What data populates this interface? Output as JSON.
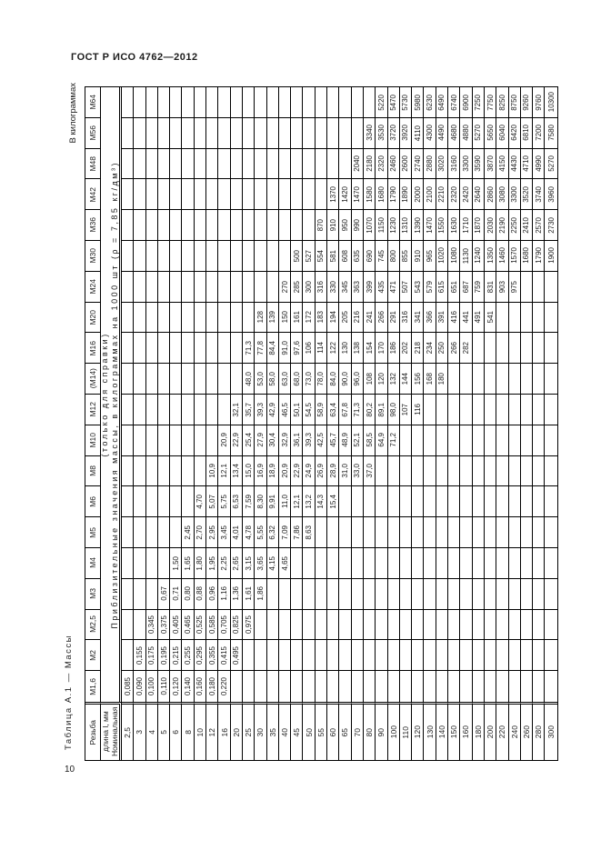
{
  "page": {
    "doc_header": "ГОСТ Р ИСО 4762—2012",
    "units_note": "В килограммах",
    "table_caption": "Таблица А.1 — Массы",
    "page_number": "10"
  },
  "table": {
    "corner_header": "Резьба",
    "length_column_header": "Номинальная длина l, мм",
    "span_header_line1": "Приблизительные значения массы, в килограммах на 1000 шт (ρ = 7,85 кг/дм³)",
    "span_header_line2": "(только для справки)",
    "lengths": [
      "2,5",
      "3",
      "4",
      "5",
      "6",
      "8",
      "10",
      "12",
      "16",
      "20",
      "25",
      "30",
      "35",
      "40",
      "45",
      "50",
      "55",
      "60",
      "65",
      "70",
      "80",
      "90",
      "100",
      "110",
      "120",
      "130",
      "140",
      "150",
      "160",
      "180",
      "200",
      "220",
      "240",
      "260",
      "280",
      "300"
    ],
    "rows": [
      {
        "size": "М64",
        "masses": {
          "90": "5220",
          "100": "5470",
          "110": "5730",
          "120": "5980",
          "130": "6230",
          "140": "6490",
          "150": "6740",
          "160": "6900",
          "180": "7250",
          "200": "7750",
          "220": "8250",
          "240": "8750",
          "260": "9260",
          "280": "9760",
          "300": "10300"
        }
      },
      {
        "size": "М56",
        "masses": {
          "80": "3340",
          "90": "3530",
          "100": "3720",
          "110": "3920",
          "120": "4110",
          "130": "4300",
          "140": "4490",
          "150": "4680",
          "160": "4880",
          "180": "5270",
          "200": "5650",
          "220": "6040",
          "240": "6420",
          "260": "6810",
          "280": "7200",
          "300": "7580"
        }
      },
      {
        "size": "М48",
        "masses": {
          "70": "2040",
          "80": "2180",
          "90": "2320",
          "100": "2460",
          "110": "2600",
          "120": "2740",
          "130": "2880",
          "140": "3020",
          "150": "3160",
          "160": "3300",
          "180": "3590",
          "200": "3870",
          "220": "4150",
          "240": "4430",
          "260": "4710",
          "280": "4990",
          "300": "5270"
        }
      },
      {
        "size": "М42",
        "masses": {
          "60": "1370",
          "65": "1420",
          "70": "1470",
          "80": "1580",
          "90": "1680",
          "100": "1790",
          "110": "1890",
          "120": "2000",
          "130": "2100",
          "140": "2210",
          "150": "2320",
          "160": "2420",
          "180": "2640",
          "200": "2860",
          "220": "3080",
          "240": "3300",
          "260": "3520",
          "280": "3740",
          "300": "3960"
        }
      },
      {
        "size": "М36",
        "masses": {
          "55": "870",
          "60": "910",
          "65": "950",
          "70": "990",
          "80": "1070",
          "90": "1150",
          "100": "1230",
          "110": "1310",
          "120": "1390",
          "130": "1470",
          "140": "1550",
          "150": "1630",
          "160": "1710",
          "180": "1870",
          "200": "2030",
          "220": "2190",
          "240": "2250",
          "260": "2410",
          "280": "2570",
          "300": "2730"
        }
      },
      {
        "size": "М30",
        "masses": {
          "45": "500",
          "50": "527",
          "55": "554",
          "60": "581",
          "65": "608",
          "70": "635",
          "80": "690",
          "90": "745",
          "100": "800",
          "110": "855",
          "120": "910",
          "130": "965",
          "140": "1020",
          "150": "1080",
          "160": "1130",
          "180": "1240",
          "200": "1350",
          "220": "1460",
          "240": "1570",
          "260": "1680",
          "280": "1790",
          "300": "1900"
        }
      },
      {
        "size": "М24",
        "masses": {
          "40": "270",
          "45": "285",
          "50": "300",
          "55": "316",
          "60": "330",
          "65": "345",
          "70": "363",
          "80": "399",
          "90": "435",
          "100": "471",
          "110": "507",
          "120": "543",
          "130": "579",
          "140": "615",
          "150": "651",
          "160": "687",
          "180": "759",
          "200": "831",
          "220": "903",
          "240": "975"
        }
      },
      {
        "size": "М20",
        "masses": {
          "30": "128",
          "35": "139",
          "40": "150",
          "45": "161",
          "50": "172",
          "55": "183",
          "60": "194",
          "65": "205",
          "70": "216",
          "80": "241",
          "90": "266",
          "100": "291",
          "110": "316",
          "120": "341",
          "130": "366",
          "140": "391",
          "150": "416",
          "160": "441",
          "180": "491",
          "200": "541"
        }
      },
      {
        "size": "М16",
        "masses": {
          "25": "71,3",
          "30": "77,8",
          "35": "84,4",
          "40": "91,0",
          "45": "97,6",
          "50": "106",
          "55": "114",
          "60": "122",
          "65": "130",
          "70": "138",
          "80": "154",
          "90": "170",
          "100": "186",
          "110": "202",
          "120": "218",
          "130": "234",
          "140": "250",
          "150": "266",
          "160": "282"
        }
      },
      {
        "size": "(М14)",
        "masses": {
          "25": "48,0",
          "30": "53,0",
          "35": "58,0",
          "40": "63,0",
          "45": "68,0",
          "50": "73,0",
          "55": "78,0",
          "60": "84,0",
          "65": "90,0",
          "70": "96,0",
          "80": "108",
          "90": "120",
          "100": "132",
          "110": "144",
          "120": "156",
          "130": "168",
          "140": "180"
        }
      },
      {
        "size": "М12",
        "masses": {
          "20": "32,1",
          "25": "35,7",
          "30": "39,3",
          "35": "42,9",
          "40": "46,5",
          "45": "50,1",
          "50": "54,5",
          "55": "58,9",
          "60": "63,4",
          "65": "67,8",
          "70": "71,3",
          "80": "80,2",
          "90": "89,1",
          "100": "98,0",
          "110": "107",
          "120": "116"
        }
      },
      {
        "size": "М10",
        "masses": {
          "16": "20,9",
          "20": "22,9",
          "25": "25,4",
          "30": "27,9",
          "35": "30,4",
          "40": "32,9",
          "45": "36,1",
          "50": "39,3",
          "55": "42,5",
          "60": "45,7",
          "65": "48,9",
          "70": "52,1",
          "80": "58,5",
          "90": "64,9",
          "100": "71,2"
        }
      },
      {
        "size": "М8",
        "masses": {
          "12": "10,9",
          "16": "12,1",
          "20": "13,4",
          "25": "15,0",
          "30": "16,9",
          "35": "18,9",
          "40": "20,9",
          "45": "22,9",
          "50": "24,9",
          "55": "26,9",
          "60": "28,9",
          "65": "31,0",
          "70": "33,0",
          "80": "37,0"
        }
      },
      {
        "size": "М6",
        "masses": {
          "10": "4,70",
          "12": "5,07",
          "16": "5,75",
          "20": "6,53",
          "25": "7,59",
          "30": "8,30",
          "35": "9,91",
          "40": "11,0",
          "45": "12,1",
          "50": "13,2",
          "55": "14,3",
          "60": "15,4"
        }
      },
      {
        "size": "М5",
        "masses": {
          "8": "2,45",
          "10": "2,70",
          "12": "2,95",
          "16": "3,45",
          "20": "4,01",
          "25": "4,78",
          "30": "5,55",
          "35": "6,32",
          "40": "7,09",
          "45": "7,86",
          "50": "8,63"
        }
      },
      {
        "size": "М4",
        "masses": {
          "6": "1,50",
          "8": "1,65",
          "10": "1,80",
          "12": "1,95",
          "16": "2,25",
          "20": "2,65",
          "25": "3,15",
          "30": "3,65",
          "35": "4,15",
          "40": "4,65"
        }
      },
      {
        "size": "М3",
        "masses": {
          "5": "0,67",
          "6": "0,71",
          "8": "0,80",
          "10": "0,88",
          "12": "0,96",
          "16": "1,16",
          "20": "1,36",
          "25": "1,61",
          "30": "1,86"
        }
      },
      {
        "size": "М2,5",
        "masses": {
          "4": "0,345",
          "5": "0,375",
          "6": "0,405",
          "8": "0,465",
          "10": "0,525",
          "12": "0,585",
          "16": "0,705",
          "20": "0,825",
          "25": "0,975"
        }
      },
      {
        "size": "М2",
        "masses": {
          "3": "0,155",
          "4": "0,175",
          "5": "0,195",
          "6": "0,215",
          "8": "0,255",
          "10": "0,295",
          "12": "0,355",
          "16": "0,415",
          "20": "0,495"
        }
      },
      {
        "size": "М1,6",
        "masses": {
          "2,5": "0,085",
          "3": "0,090",
          "4": "0,100",
          "5": "0,110",
          "6": "0,120",
          "8": "0,140",
          "10": "0,160",
          "12": "0,180",
          "16": "0,220"
        }
      }
    ]
  }
}
